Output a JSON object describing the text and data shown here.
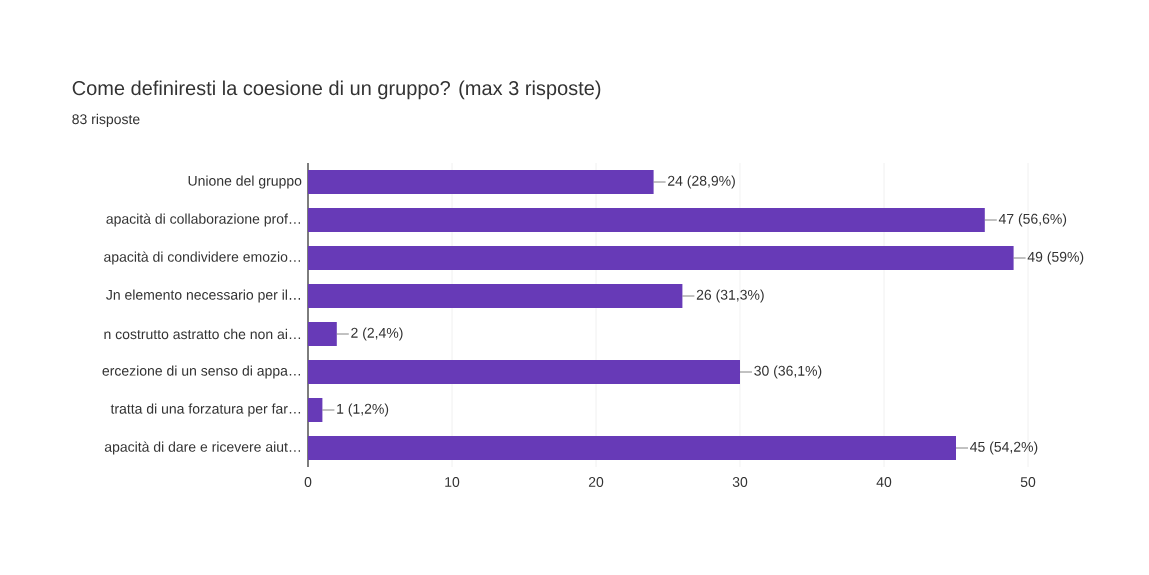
{
  "chart_data": {
    "type": "bar",
    "orientation": "horizontal",
    "title": "Come definiresti la coesione di un gruppo? (max 3 risposte)",
    "subtitle": "83 risposte",
    "categories": [
      "Unione del gruppo",
      "apacità di collaborazione prof…",
      "apacità di condividere emozio…",
      "Jn elemento necessario per il…",
      "n costrutto astratto che non ai…",
      "ercezione di un senso di appa…",
      "tratta di una forzatura per far…",
      "apacità di dare e ricevere aiut…"
    ],
    "values": [
      24,
      47,
      49,
      26,
      2,
      30,
      1,
      45
    ],
    "value_labels": [
      "24 (28,9%)",
      "47 (56,6%)",
      "49 (59%)",
      "26 (31,3%)",
      "2 (2,4%)",
      "30 (36,1%)",
      "1 (1,2%)",
      "45 (54,2%)"
    ],
    "color": "#673ab7",
    "xlim": [
      0,
      50
    ],
    "xticks": [
      0,
      10,
      20,
      30,
      40,
      50
    ],
    "grid": "x"
  }
}
